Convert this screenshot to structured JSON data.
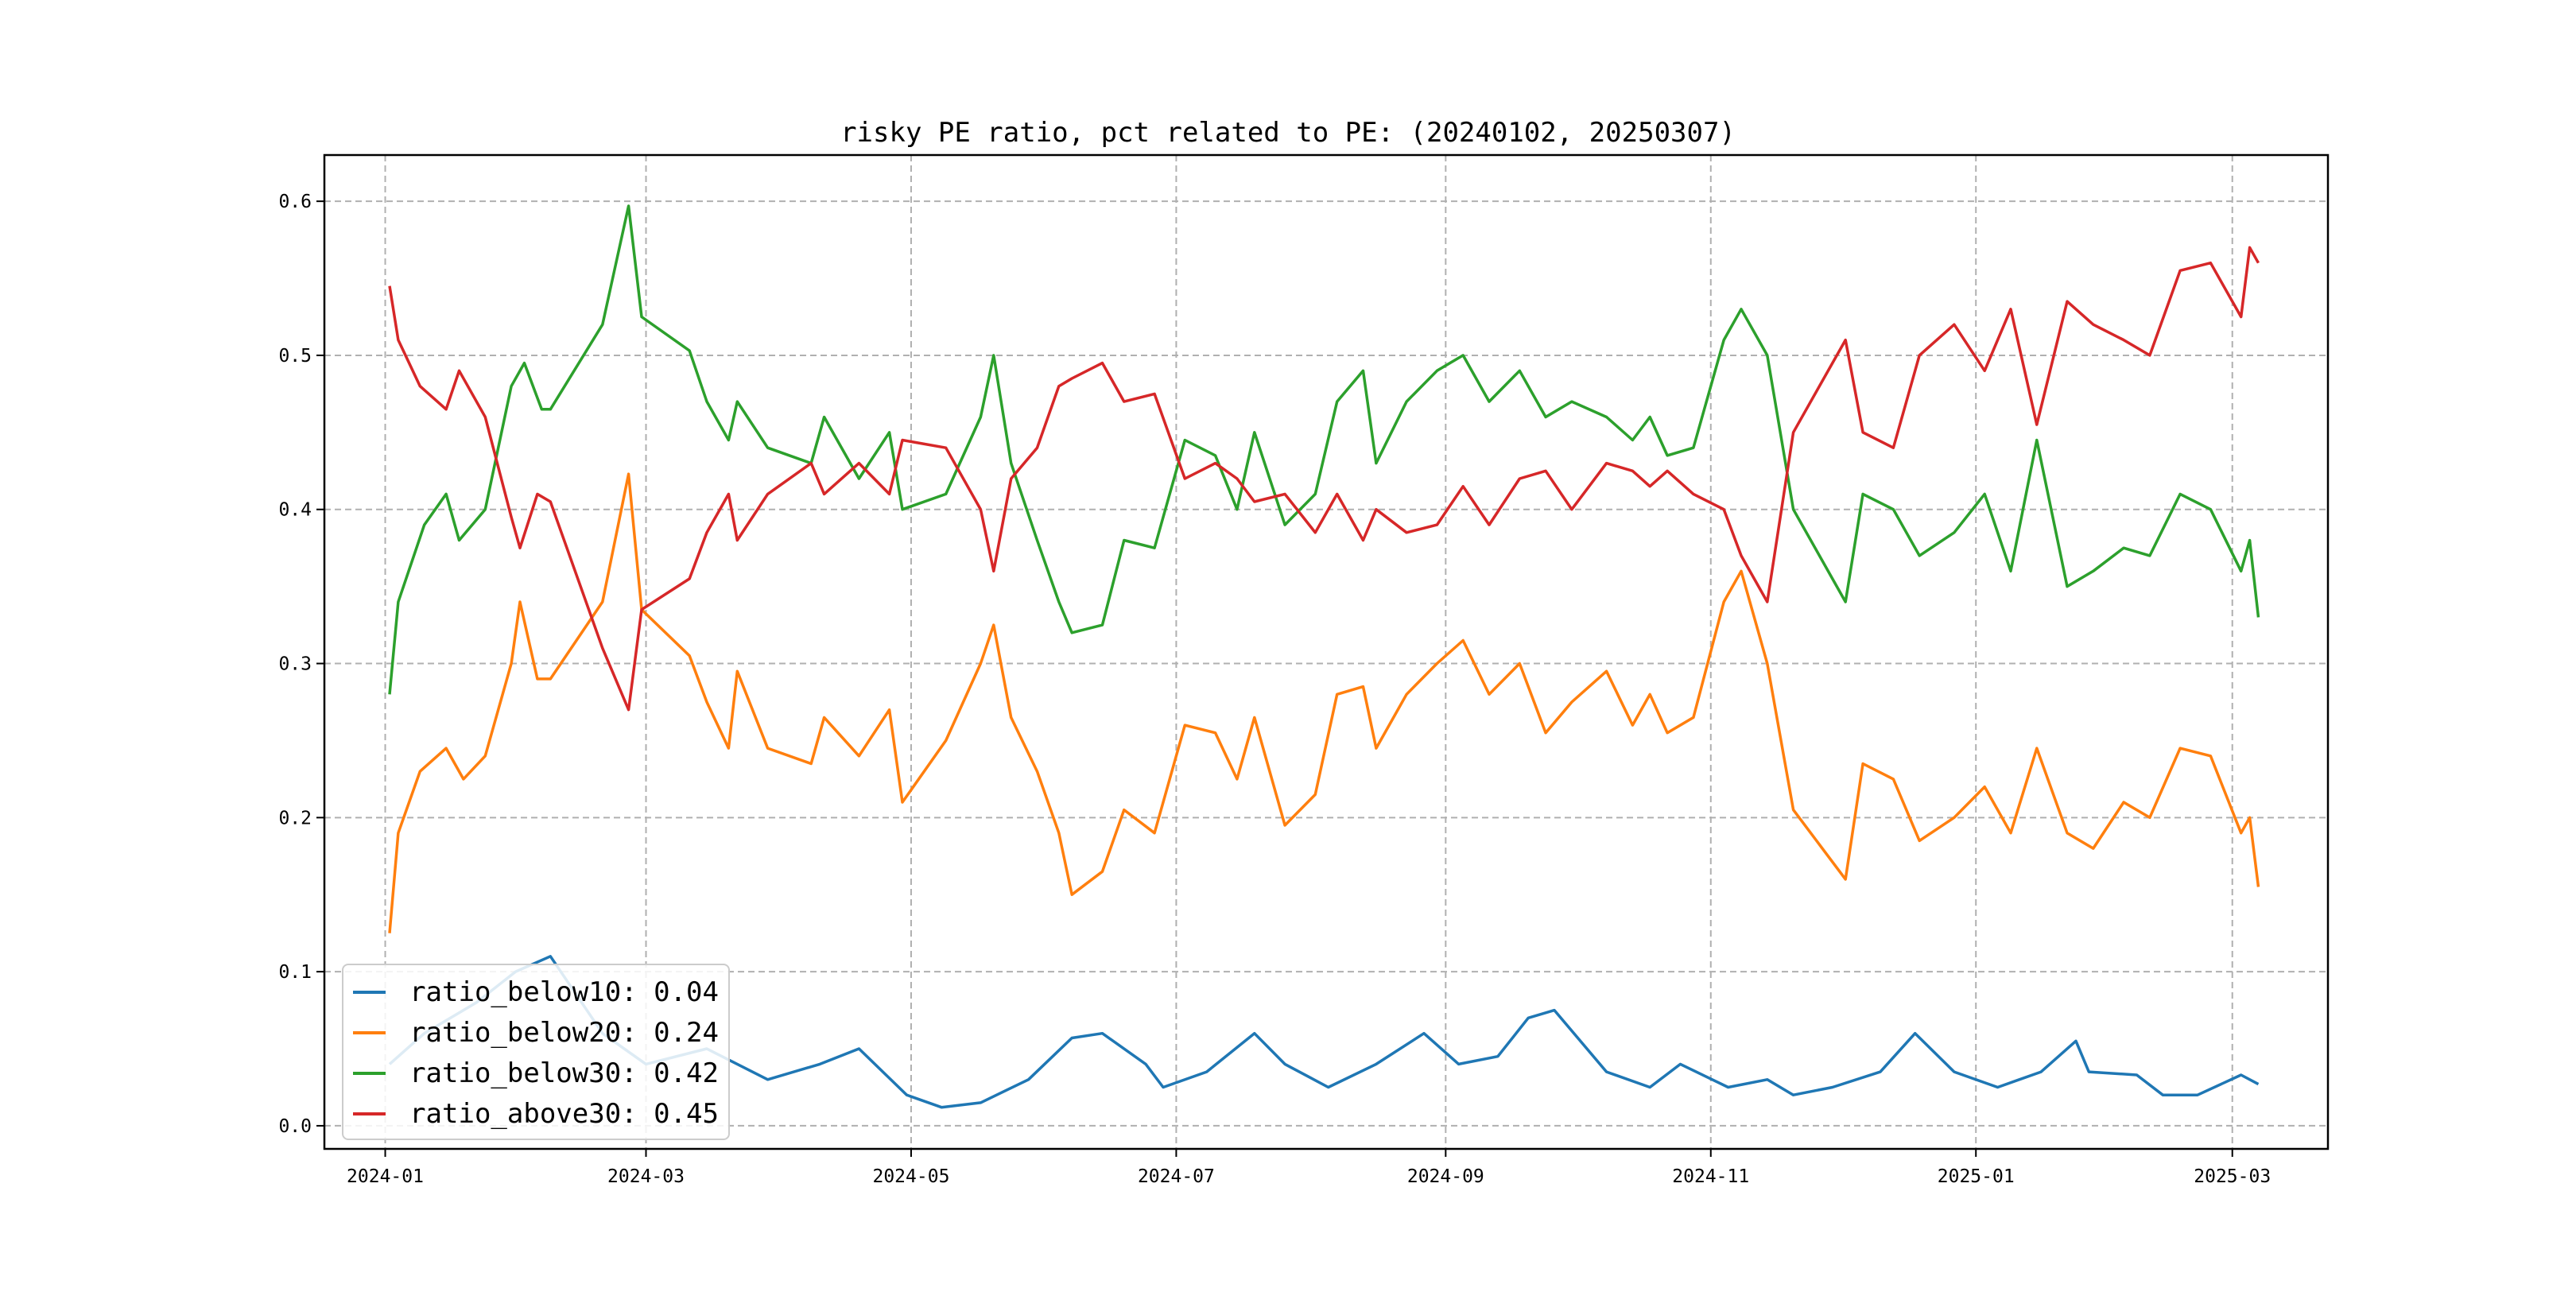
{
  "chart_data": {
    "type": "line",
    "title": "risky PE ratio, pct related to PE: (20240102, 20250307)",
    "xlabel": "",
    "ylabel": "",
    "xlim": [
      "2023-12-18",
      "2025-03-23"
    ],
    "ylim": [
      -0.015,
      0.63
    ],
    "grid": true,
    "legend_position": "lower-left",
    "x_ticks": [
      "2024-01",
      "2024-03",
      "2024-05",
      "2024-07",
      "2024-09",
      "2024-11",
      "2025-01",
      "2025-03"
    ],
    "y_ticks": [
      "0.0",
      "0.1",
      "0.2",
      "0.3",
      "0.4",
      "0.5",
      "0.6"
    ],
    "series": [
      {
        "name": "ratio_below10",
        "legend": "ratio_below10: 0.04",
        "color": "#1f77b4",
        "points": [
          [
            "2024-01-02",
            0.04
          ],
          [
            "2024-01-10",
            0.06
          ],
          [
            "2024-01-22",
            0.08
          ],
          [
            "2024-01-31",
            0.1
          ],
          [
            "2024-02-08",
            0.11
          ],
          [
            "2024-02-20",
            0.06
          ],
          [
            "2024-03-01",
            0.04
          ],
          [
            "2024-03-15",
            0.05
          ],
          [
            "2024-03-29",
            0.03
          ],
          [
            "2024-04-10",
            0.04
          ],
          [
            "2024-04-19",
            0.05
          ],
          [
            "2024-04-30",
            0.02
          ],
          [
            "2024-05-08",
            0.012
          ],
          [
            "2024-05-17",
            0.015
          ],
          [
            "2024-05-28",
            0.03
          ],
          [
            "2024-06-07",
            0.057
          ],
          [
            "2024-06-14",
            0.06
          ],
          [
            "2024-06-24",
            0.04
          ],
          [
            "2024-06-28",
            0.025
          ],
          [
            "2024-07-08",
            0.035
          ],
          [
            "2024-07-19",
            0.06
          ],
          [
            "2024-07-26",
            0.04
          ],
          [
            "2024-08-05",
            0.025
          ],
          [
            "2024-08-16",
            0.04
          ],
          [
            "2024-08-27",
            0.06
          ],
          [
            "2024-09-04",
            0.04
          ],
          [
            "2024-09-13",
            0.045
          ],
          [
            "2024-09-20",
            0.07
          ],
          [
            "2024-09-26",
            0.075
          ],
          [
            "2024-10-08",
            0.035
          ],
          [
            "2024-10-18",
            0.025
          ],
          [
            "2024-10-25",
            0.04
          ],
          [
            "2024-11-05",
            0.025
          ],
          [
            "2024-11-14",
            0.03
          ],
          [
            "2024-11-20",
            0.02
          ],
          [
            "2024-11-29",
            0.025
          ],
          [
            "2024-12-10",
            0.035
          ],
          [
            "2024-12-18",
            0.06
          ],
          [
            "2024-12-27",
            0.035
          ],
          [
            "2025-01-06",
            0.025
          ],
          [
            "2025-01-16",
            0.035
          ],
          [
            "2025-01-24",
            0.055
          ],
          [
            "2025-01-27",
            0.035
          ],
          [
            "2025-02-07",
            0.033
          ],
          [
            "2025-02-13",
            0.02
          ],
          [
            "2025-02-21",
            0.02
          ],
          [
            "2025-03-03",
            0.033
          ],
          [
            "2025-03-07",
            0.027
          ]
        ]
      },
      {
        "name": "ratio_below20",
        "legend": "ratio_below20: 0.24",
        "color": "#ff7f0e",
        "points": [
          [
            "2024-01-02",
            0.125
          ],
          [
            "2024-01-04",
            0.19
          ],
          [
            "2024-01-09",
            0.23
          ],
          [
            "2024-01-15",
            0.245
          ],
          [
            "2024-01-19",
            0.225
          ],
          [
            "2024-01-24",
            0.24
          ],
          [
            "2024-01-30",
            0.3
          ],
          [
            "2024-02-01",
            0.34
          ],
          [
            "2024-02-05",
            0.29
          ],
          [
            "2024-02-08",
            0.29
          ],
          [
            "2024-02-20",
            0.34
          ],
          [
            "2024-02-26",
            0.423
          ],
          [
            "2024-02-29",
            0.335
          ],
          [
            "2024-03-11",
            0.305
          ],
          [
            "2024-03-15",
            0.275
          ],
          [
            "2024-03-20",
            0.245
          ],
          [
            "2024-03-22",
            0.295
          ],
          [
            "2024-03-29",
            0.245
          ],
          [
            "2024-04-08",
            0.235
          ],
          [
            "2024-04-11",
            0.265
          ],
          [
            "2024-04-19",
            0.24
          ],
          [
            "2024-04-26",
            0.27
          ],
          [
            "2024-04-29",
            0.21
          ],
          [
            "2024-05-09",
            0.25
          ],
          [
            "2024-05-17",
            0.3
          ],
          [
            "2024-05-20",
            0.325
          ],
          [
            "2024-05-24",
            0.265
          ],
          [
            "2024-05-30",
            0.23
          ],
          [
            "2024-06-04",
            0.19
          ],
          [
            "2024-06-07",
            0.15
          ],
          [
            "2024-06-14",
            0.165
          ],
          [
            "2024-06-19",
            0.205
          ],
          [
            "2024-06-26",
            0.19
          ],
          [
            "2024-07-03",
            0.26
          ],
          [
            "2024-07-10",
            0.255
          ],
          [
            "2024-07-15",
            0.225
          ],
          [
            "2024-07-19",
            0.265
          ],
          [
            "2024-07-26",
            0.195
          ],
          [
            "2024-08-02",
            0.215
          ],
          [
            "2024-08-07",
            0.28
          ],
          [
            "2024-08-13",
            0.285
          ],
          [
            "2024-08-16",
            0.245
          ],
          [
            "2024-08-23",
            0.28
          ],
          [
            "2024-08-30",
            0.3
          ],
          [
            "2024-09-05",
            0.315
          ],
          [
            "2024-09-11",
            0.28
          ],
          [
            "2024-09-18",
            0.3
          ],
          [
            "2024-09-24",
            0.255
          ],
          [
            "2024-09-30",
            0.275
          ],
          [
            "2024-10-08",
            0.295
          ],
          [
            "2024-10-14",
            0.26
          ],
          [
            "2024-10-18",
            0.28
          ],
          [
            "2024-10-22",
            0.255
          ],
          [
            "2024-10-28",
            0.265
          ],
          [
            "2024-11-04",
            0.34
          ],
          [
            "2024-11-08",
            0.36
          ],
          [
            "2024-11-14",
            0.3
          ],
          [
            "2024-11-20",
            0.205
          ],
          [
            "2024-12-02",
            0.16
          ],
          [
            "2024-12-06",
            0.235
          ],
          [
            "2024-12-13",
            0.225
          ],
          [
            "2024-12-19",
            0.185
          ],
          [
            "2024-12-27",
            0.2
          ],
          [
            "2025-01-03",
            0.22
          ],
          [
            "2025-01-09",
            0.19
          ],
          [
            "2025-01-15",
            0.245
          ],
          [
            "2025-01-22",
            0.19
          ],
          [
            "2025-01-28",
            0.18
          ],
          [
            "2025-02-04",
            0.21
          ],
          [
            "2025-02-10",
            0.2
          ],
          [
            "2025-02-17",
            0.245
          ],
          [
            "2025-02-24",
            0.24
          ],
          [
            "2025-03-03",
            0.19
          ],
          [
            "2025-03-05",
            0.2
          ],
          [
            "2025-03-07",
            0.155
          ]
        ]
      },
      {
        "name": "ratio_below30",
        "legend": "ratio_below30: 0.42",
        "color": "#2ca02c",
        "points": [
          [
            "2024-01-02",
            0.28
          ],
          [
            "2024-01-04",
            0.34
          ],
          [
            "2024-01-10",
            0.39
          ],
          [
            "2024-01-15",
            0.41
          ],
          [
            "2024-01-18",
            0.38
          ],
          [
            "2024-01-24",
            0.4
          ],
          [
            "2024-01-30",
            0.48
          ],
          [
            "2024-02-02",
            0.495
          ],
          [
            "2024-02-06",
            0.465
          ],
          [
            "2024-02-08",
            0.465
          ],
          [
            "2024-02-20",
            0.52
          ],
          [
            "2024-02-26",
            0.597
          ],
          [
            "2024-02-29",
            0.525
          ],
          [
            "2024-03-11",
            0.503
          ],
          [
            "2024-03-15",
            0.47
          ],
          [
            "2024-03-20",
            0.445
          ],
          [
            "2024-03-22",
            0.47
          ],
          [
            "2024-03-29",
            0.44
          ],
          [
            "2024-04-08",
            0.43
          ],
          [
            "2024-04-11",
            0.46
          ],
          [
            "2024-04-19",
            0.42
          ],
          [
            "2024-04-26",
            0.45
          ],
          [
            "2024-04-29",
            0.4
          ],
          [
            "2024-05-09",
            0.41
          ],
          [
            "2024-05-17",
            0.46
          ],
          [
            "2024-05-20",
            0.5
          ],
          [
            "2024-05-24",
            0.43
          ],
          [
            "2024-05-30",
            0.38
          ],
          [
            "2024-06-04",
            0.34
          ],
          [
            "2024-06-07",
            0.32
          ],
          [
            "2024-06-14",
            0.325
          ],
          [
            "2024-06-19",
            0.38
          ],
          [
            "2024-06-26",
            0.375
          ],
          [
            "2024-07-03",
            0.445
          ],
          [
            "2024-07-10",
            0.435
          ],
          [
            "2024-07-15",
            0.4
          ],
          [
            "2024-07-19",
            0.45
          ],
          [
            "2024-07-26",
            0.39
          ],
          [
            "2024-08-02",
            0.41
          ],
          [
            "2024-08-07",
            0.47
          ],
          [
            "2024-08-13",
            0.49
          ],
          [
            "2024-08-16",
            0.43
          ],
          [
            "2024-08-23",
            0.47
          ],
          [
            "2024-08-30",
            0.49
          ],
          [
            "2024-09-05",
            0.5
          ],
          [
            "2024-09-11",
            0.47
          ],
          [
            "2024-09-18",
            0.49
          ],
          [
            "2024-09-24",
            0.46
          ],
          [
            "2024-09-30",
            0.47
          ],
          [
            "2024-10-08",
            0.46
          ],
          [
            "2024-10-14",
            0.445
          ],
          [
            "2024-10-18",
            0.46
          ],
          [
            "2024-10-22",
            0.435
          ],
          [
            "2024-10-28",
            0.44
          ],
          [
            "2024-11-04",
            0.51
          ],
          [
            "2024-11-08",
            0.53
          ],
          [
            "2024-11-14",
            0.5
          ],
          [
            "2024-11-20",
            0.4
          ],
          [
            "2024-12-02",
            0.34
          ],
          [
            "2024-12-06",
            0.41
          ],
          [
            "2024-12-13",
            0.4
          ],
          [
            "2024-12-19",
            0.37
          ],
          [
            "2024-12-27",
            0.385
          ],
          [
            "2025-01-03",
            0.41
          ],
          [
            "2025-01-09",
            0.36
          ],
          [
            "2025-01-15",
            0.445
          ],
          [
            "2025-01-22",
            0.35
          ],
          [
            "2025-01-28",
            0.36
          ],
          [
            "2025-02-04",
            0.375
          ],
          [
            "2025-02-10",
            0.37
          ],
          [
            "2025-02-17",
            0.41
          ],
          [
            "2025-02-24",
            0.4
          ],
          [
            "2025-03-03",
            0.36
          ],
          [
            "2025-03-05",
            0.38
          ],
          [
            "2025-03-07",
            0.33
          ]
        ]
      },
      {
        "name": "ratio_above30",
        "legend": "ratio_above30: 0.45",
        "color": "#d62728",
        "points": [
          [
            "2024-01-02",
            0.545
          ],
          [
            "2024-01-04",
            0.51
          ],
          [
            "2024-01-09",
            0.48
          ],
          [
            "2024-01-15",
            0.465
          ],
          [
            "2024-01-18",
            0.49
          ],
          [
            "2024-01-24",
            0.46
          ],
          [
            "2024-01-30",
            0.395
          ],
          [
            "2024-02-01",
            0.375
          ],
          [
            "2024-02-05",
            0.41
          ],
          [
            "2024-02-08",
            0.405
          ],
          [
            "2024-02-20",
            0.31
          ],
          [
            "2024-02-26",
            0.27
          ],
          [
            "2024-02-29",
            0.335
          ],
          [
            "2024-03-11",
            0.355
          ],
          [
            "2024-03-15",
            0.385
          ],
          [
            "2024-03-20",
            0.41
          ],
          [
            "2024-03-22",
            0.38
          ],
          [
            "2024-03-29",
            0.41
          ],
          [
            "2024-04-08",
            0.43
          ],
          [
            "2024-04-11",
            0.41
          ],
          [
            "2024-04-19",
            0.43
          ],
          [
            "2024-04-26",
            0.41
          ],
          [
            "2024-04-29",
            0.445
          ],
          [
            "2024-05-09",
            0.44
          ],
          [
            "2024-05-17",
            0.4
          ],
          [
            "2024-05-20",
            0.36
          ],
          [
            "2024-05-24",
            0.42
          ],
          [
            "2024-05-30",
            0.44
          ],
          [
            "2024-06-04",
            0.48
          ],
          [
            "2024-06-07",
            0.485
          ],
          [
            "2024-06-14",
            0.495
          ],
          [
            "2024-06-19",
            0.47
          ],
          [
            "2024-06-26",
            0.475
          ],
          [
            "2024-07-03",
            0.42
          ],
          [
            "2024-07-10",
            0.43
          ],
          [
            "2024-07-15",
            0.42
          ],
          [
            "2024-07-19",
            0.405
          ],
          [
            "2024-07-26",
            0.41
          ],
          [
            "2024-08-02",
            0.385
          ],
          [
            "2024-08-07",
            0.41
          ],
          [
            "2024-08-13",
            0.38
          ],
          [
            "2024-08-16",
            0.4
          ],
          [
            "2024-08-23",
            0.385
          ],
          [
            "2024-08-30",
            0.39
          ],
          [
            "2024-09-05",
            0.415
          ],
          [
            "2024-09-11",
            0.39
          ],
          [
            "2024-09-18",
            0.42
          ],
          [
            "2024-09-24",
            0.425
          ],
          [
            "2024-09-30",
            0.4
          ],
          [
            "2024-10-08",
            0.43
          ],
          [
            "2024-10-14",
            0.425
          ],
          [
            "2024-10-18",
            0.415
          ],
          [
            "2024-10-22",
            0.425
          ],
          [
            "2024-10-28",
            0.41
          ],
          [
            "2024-11-04",
            0.4
          ],
          [
            "2024-11-08",
            0.37
          ],
          [
            "2024-11-14",
            0.34
          ],
          [
            "2024-11-20",
            0.45
          ],
          [
            "2024-12-02",
            0.51
          ],
          [
            "2024-12-06",
            0.45
          ],
          [
            "2024-12-13",
            0.44
          ],
          [
            "2024-12-19",
            0.5
          ],
          [
            "2024-12-27",
            0.52
          ],
          [
            "2025-01-03",
            0.49
          ],
          [
            "2025-01-09",
            0.53
          ],
          [
            "2025-01-15",
            0.455
          ],
          [
            "2025-01-22",
            0.535
          ],
          [
            "2025-01-28",
            0.52
          ],
          [
            "2025-02-04",
            0.51
          ],
          [
            "2025-02-10",
            0.5
          ],
          [
            "2025-02-17",
            0.555
          ],
          [
            "2025-02-24",
            0.56
          ],
          [
            "2025-03-03",
            0.525
          ],
          [
            "2025-03-05",
            0.57
          ],
          [
            "2025-03-07",
            0.56
          ]
        ]
      }
    ]
  }
}
